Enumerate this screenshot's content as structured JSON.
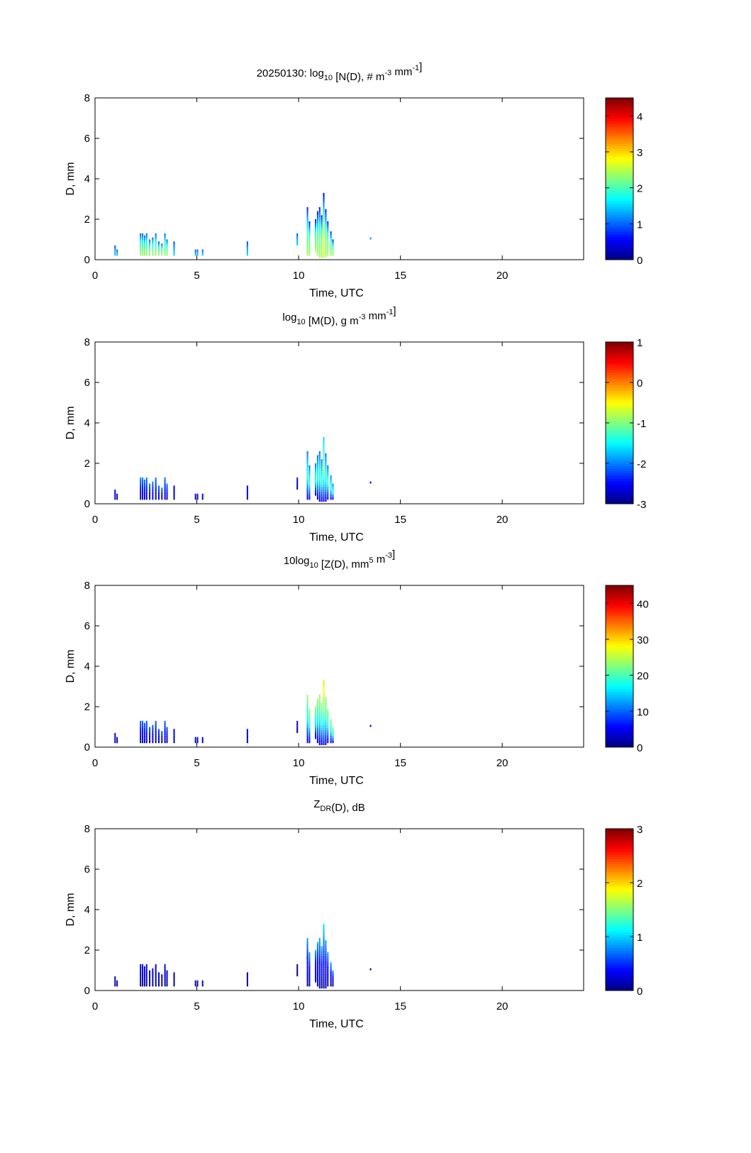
{
  "chart_data": [
    {
      "type": "heatmap",
      "title_parts": [
        [
          "n",
          "20250130: log"
        ],
        [
          "sub",
          "10"
        ],
        [
          "n",
          " [N(D), # m"
        ],
        [
          "sup",
          "-3"
        ],
        [
          "n",
          " mm"
        ],
        [
          "sup",
          "-1"
        ],
        [
          "n",
          "]"
        ]
      ],
      "xlabel": "Time, UTC",
      "ylabel": "D, mm",
      "xlim": [
        0,
        24
      ],
      "ylim": [
        0,
        8
      ],
      "xticks": [
        "0",
        "5",
        "10",
        "15",
        "20"
      ],
      "yticks": [
        "0",
        "2",
        "4",
        "6",
        "8"
      ],
      "clim": [
        0,
        4.5
      ],
      "cticks": [
        "0",
        "1",
        "2",
        "3",
        "4"
      ],
      "colormap": "jet"
    },
    {
      "type": "heatmap",
      "title_parts": [
        [
          "n",
          "log"
        ],
        [
          "sub",
          "10"
        ],
        [
          "n",
          " [M(D), g m"
        ],
        [
          "sup",
          "-3"
        ],
        [
          "n",
          " mm"
        ],
        [
          "sup",
          "-1"
        ],
        [
          "n",
          "]"
        ]
      ],
      "xlabel": "Time, UTC",
      "ylabel": "D, mm",
      "xlim": [
        0,
        24
      ],
      "ylim": [
        0,
        8
      ],
      "xticks": [
        "0",
        "5",
        "10",
        "15",
        "20"
      ],
      "yticks": [
        "0",
        "2",
        "4",
        "6",
        "8"
      ],
      "clim": [
        -3,
        1
      ],
      "cticks": [
        "-3",
        "-2",
        "-1",
        "0",
        "1"
      ],
      "colormap": "jet"
    },
    {
      "type": "heatmap",
      "title_parts": [
        [
          "n",
          "10log"
        ],
        [
          "sub",
          "10"
        ],
        [
          "n",
          " [Z(D),  mm"
        ],
        [
          "sup",
          "5"
        ],
        [
          "n",
          " m"
        ],
        [
          "sup",
          "-3"
        ],
        [
          "n",
          "]"
        ]
      ],
      "xlabel": "Time, UTC",
      "ylabel": "D, mm",
      "xlim": [
        0,
        24
      ],
      "ylim": [
        0,
        8
      ],
      "xticks": [
        "0",
        "5",
        "10",
        "15",
        "20"
      ],
      "yticks": [
        "0",
        "2",
        "4",
        "6",
        "8"
      ],
      "clim": [
        0,
        45
      ],
      "cticks": [
        "0",
        "10",
        "20",
        "30",
        "40"
      ],
      "colormap": "jet"
    },
    {
      "type": "heatmap",
      "title_parts": [
        [
          "n",
          "Z"
        ],
        [
          "sub",
          "DR"
        ],
        [
          "n",
          "(D), dB"
        ]
      ],
      "xlabel": "Time, UTC",
      "ylabel": "D, mm",
      "xlim": [
        0,
        24
      ],
      "ylim": [
        0,
        8
      ],
      "xticks": [
        "0",
        "5",
        "10",
        "15",
        "20"
      ],
      "yticks": [
        "0",
        "2",
        "4",
        "6",
        "8"
      ],
      "clim": [
        0,
        3
      ],
      "cticks": [
        "0",
        "1",
        "2",
        "3"
      ],
      "colormap": "jet"
    }
  ],
  "columns": {
    "time_step_h": 0.07,
    "d_bin_mm": 0.125,
    "t": [
      0.95,
      1.05,
      2.2,
      2.3,
      2.4,
      2.5,
      2.65,
      2.8,
      2.95,
      3.1,
      3.25,
      3.4,
      3.5,
      3.85,
      4.9,
      5.0,
      5.25,
      7.45,
      9.9,
      10.4,
      10.5,
      10.8,
      10.9,
      11.0,
      11.1,
      11.2,
      11.3,
      11.4,
      11.55,
      11.65,
      13.5
    ],
    "dmin": [
      0.2,
      0.2,
      0.2,
      0.2,
      0.2,
      0.2,
      0.2,
      0.2,
      0.2,
      0.2,
      0.2,
      0.2,
      0.2,
      0.2,
      0.2,
      0.2,
      0.2,
      0.2,
      0.7,
      0.2,
      0.2,
      0.4,
      0.2,
      0.1,
      0.1,
      0.1,
      0.1,
      0.2,
      0.2,
      0.2,
      1.0
    ],
    "dmax": [
      0.7,
      0.5,
      1.3,
      1.3,
      1.2,
      1.3,
      1.0,
      1.1,
      1.3,
      0.9,
      0.8,
      1.3,
      1.0,
      0.9,
      0.5,
      0.5,
      0.5,
      0.9,
      1.3,
      2.6,
      1.9,
      2.0,
      2.4,
      2.6,
      2.2,
      3.3,
      2.5,
      1.9,
      1.4,
      1.0,
      1.1
    ]
  },
  "panel_values": [
    {
      "small": [
        1.5,
        1.3,
        0.8
      ],
      "cluster": [
        2.4,
        2.0,
        0.9
      ],
      "main": [
        2.4,
        2.1,
        0.6
      ],
      "peak": [
        2.9,
        2.5,
        0.4
      ]
    },
    {
      "small": [
        -2.9,
        -2.7,
        -2.5
      ],
      "cluster": [
        -2.8,
        -2.4,
        -2.0
      ],
      "main": [
        -2.7,
        -1.3,
        -2.1
      ],
      "peak": [
        -2.6,
        -0.9,
        -1.7
      ]
    },
    {
      "small": [
        1,
        3,
        5
      ],
      "cluster": [
        2,
        6,
        10
      ],
      "main": [
        3,
        17,
        24
      ],
      "peak": [
        5,
        22,
        30
      ]
    },
    {
      "small": [
        0.05,
        0.1,
        0.2
      ],
      "cluster": [
        0.1,
        0.2,
        0.3
      ],
      "main": [
        0.1,
        0.3,
        0.9
      ],
      "peak": [
        0.1,
        0.45,
        1.1
      ]
    }
  ],
  "column_class": [
    "small",
    "small",
    "cluster",
    "cluster",
    "cluster",
    "cluster",
    "cluster",
    "cluster",
    "cluster",
    "cluster",
    "cluster",
    "cluster",
    "cluster",
    "small",
    "small",
    "small",
    "small",
    "small",
    "small",
    "main",
    "main",
    "main",
    "main",
    "main",
    "main",
    "peak",
    "main",
    "main",
    "main",
    "main",
    "small"
  ]
}
